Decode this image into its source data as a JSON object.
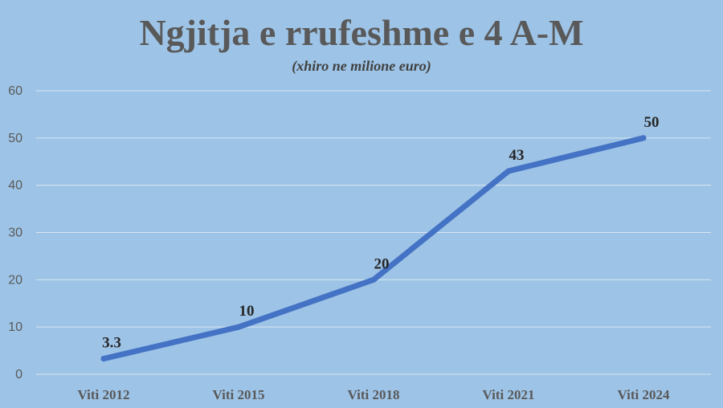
{
  "chart_data": {
    "type": "line",
    "title": "Ngjitja e rrufeshme e 4 A-M",
    "subtitle": "(xhiro ne milione euro)",
    "categories": [
      "Viti 2012",
      "Viti 2015",
      "Viti 2018",
      "Viti 2021",
      "Viti 2024"
    ],
    "series": [
      {
        "values": [
          3.3,
          10,
          20,
          43,
          50
        ],
        "labels": [
          "3.3",
          "10",
          "20",
          "43",
          "50"
        ]
      }
    ],
    "ylim": [
      0,
      60
    ],
    "yticks": [
      "0",
      "10",
      "20",
      "30",
      "40",
      "50",
      "60"
    ],
    "grid": true,
    "legend": "none",
    "line_color": "#4472c4",
    "background_color": "#9dc3e6"
  }
}
